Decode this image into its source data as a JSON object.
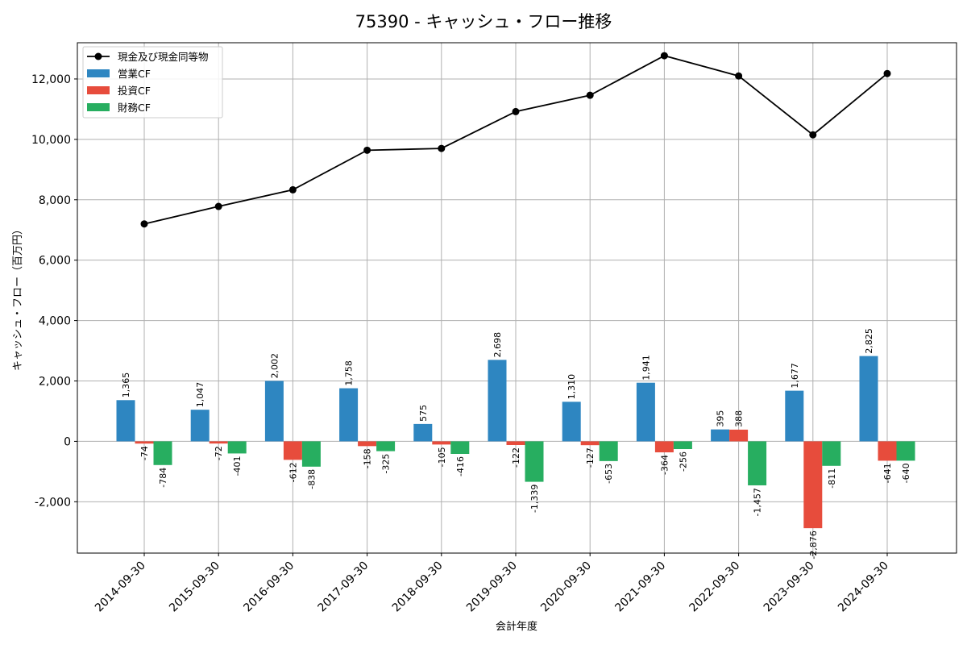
{
  "chart_data": {
    "type": "bar",
    "title": "75390 - キャッシュ・フロー推移",
    "xlabel": "会計年度",
    "ylabel": "キャッシュ・フロー（百万円）",
    "ylim": [
      -3700,
      13200
    ],
    "yticks": [
      -2000,
      0,
      2000,
      4000,
      6000,
      8000,
      10000,
      12000
    ],
    "ytick_labels": [
      "-2,000",
      "0",
      "2,000",
      "4,000",
      "6,000",
      "8,000",
      "10,000",
      "12,000"
    ],
    "grid": true,
    "legend_position": "top-left",
    "categories": [
      "2014-09-30",
      "2015-09-30",
      "2016-09-30",
      "2017-09-30",
      "2018-09-30",
      "2019-09-30",
      "2020-09-30",
      "2021-09-30",
      "2022-09-30",
      "2023-09-30",
      "2024-09-30"
    ],
    "series": [
      {
        "name": "営業CF",
        "kind": "bar",
        "color": "#2e86c1",
        "values": [
          1365,
          1047,
          2002,
          1758,
          575,
          2698,
          1310,
          1941,
          395,
          1677,
          2825
        ],
        "labels": [
          "1,365",
          "1,047",
          "2,002",
          "1,758",
          "575",
          "2,698",
          "1,310",
          "1,941",
          "395",
          "1,677",
          "2,825"
        ]
      },
      {
        "name": "投資CF",
        "kind": "bar",
        "color": "#e74c3c",
        "values": [
          -74,
          -72,
          -612,
          -158,
          -105,
          -122,
          -127,
          -364,
          388,
          -2876,
          -641
        ],
        "labels": [
          "-74",
          "-72",
          "-612",
          "-158",
          "-105",
          "-122",
          "-127",
          "-364",
          "388",
          "-2,876",
          "-641"
        ]
      },
      {
        "name": "財務CF",
        "kind": "bar",
        "color": "#27ae60",
        "values": [
          -784,
          -401,
          -838,
          -325,
          -416,
          -1339,
          -653,
          -256,
          -1457,
          -811,
          -640
        ],
        "labels": [
          "-784",
          "-401",
          "-838",
          "-325",
          "-416",
          "-1,339",
          "-653",
          "-256",
          "-1,457",
          "-811",
          "-640"
        ]
      },
      {
        "name": "現金及び現金同等物",
        "kind": "line",
        "color": "#000000",
        "values": [
          7200,
          7780,
          8330,
          9640,
          9700,
          10920,
          11460,
          12770,
          12100,
          10150,
          12180
        ]
      }
    ]
  }
}
